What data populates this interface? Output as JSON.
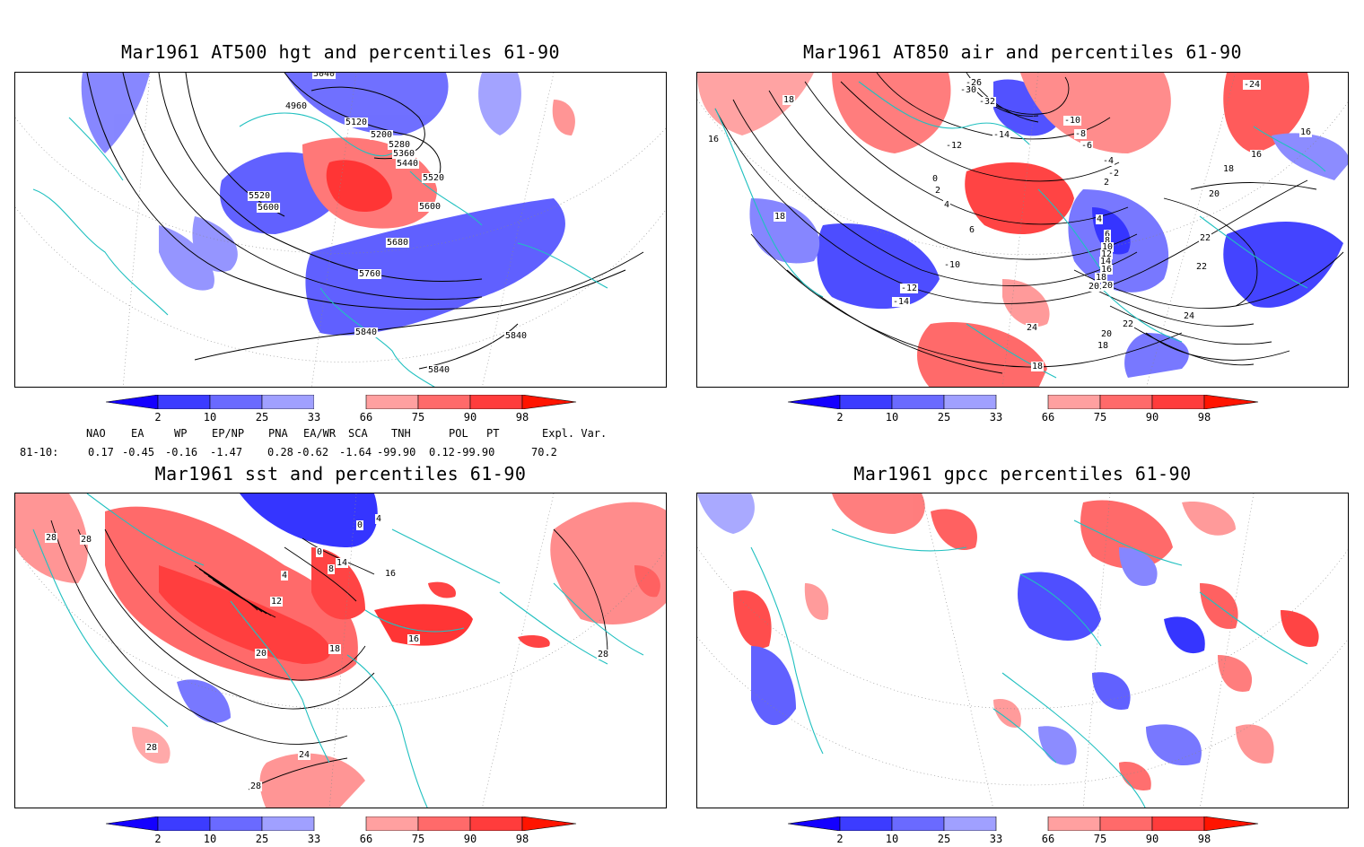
{
  "panels": [
    {
      "title": "Mar1961 AT500 hgt and percentiles 61-90",
      "contour_labels": [
        "5040",
        "4960",
        "5120",
        "5200",
        "5280",
        "5360",
        "5440",
        "5520",
        "5520",
        "5600",
        "5600",
        "5680",
        "5760",
        "5840",
        "5840",
        "5840"
      ]
    },
    {
      "title": "Mar1961 AT850 air and percentiles 61-90",
      "contour_labels": [
        "-26",
        "-30",
        "-32",
        "-24",
        "-10",
        "-8",
        "-12",
        "-14",
        "-6",
        "-4",
        "-2",
        "0",
        "2",
        "4",
        "6",
        "-10",
        "-12",
        "-14",
        "2",
        "4",
        "6",
        "8",
        "10",
        "12",
        "14",
        "16",
        "18",
        "20",
        "22",
        "24",
        "18",
        "16",
        "18",
        "16",
        "18",
        "20",
        "22",
        "20",
        "18",
        "24",
        "22",
        "20",
        "18",
        "16"
      ]
    },
    {
      "title": "Mar1961 sst and percentiles 61-90",
      "contour_labels": [
        "28",
        "28",
        "0",
        "4",
        "0",
        "8",
        "12",
        "4",
        "14",
        "16",
        "20",
        "18",
        "16",
        "24",
        "28",
        "28",
        "28"
      ]
    },
    {
      "title": "Mar1961 gpcc percentiles 61-90",
      "contour_labels": []
    }
  ],
  "colorbar": {
    "ticks": [
      "2",
      "10",
      "25",
      "33",
      "66",
      "75",
      "90",
      "98"
    ],
    "colors": [
      "#1400ff",
      "#3c3cff",
      "#6a6aff",
      "#a0a0ff",
      "#ffffff",
      "#ffa0a0",
      "#ff6a6a",
      "#ff3c3c",
      "#ff1400"
    ]
  },
  "indices": {
    "headers": [
      "NAO",
      "EA",
      "WP",
      "EP/NP",
      "PNA",
      "EA/WR",
      "SCA",
      "TNH",
      "POL",
      "PT",
      "Expl. Var."
    ],
    "row_label": "81-10:",
    "values": [
      "0.17",
      "-0.45",
      "-0.16",
      "-1.47",
      "0.28",
      "-0.62",
      "-1.64",
      "-99.90",
      "0.12",
      "-99.90",
      "70.2"
    ]
  }
}
